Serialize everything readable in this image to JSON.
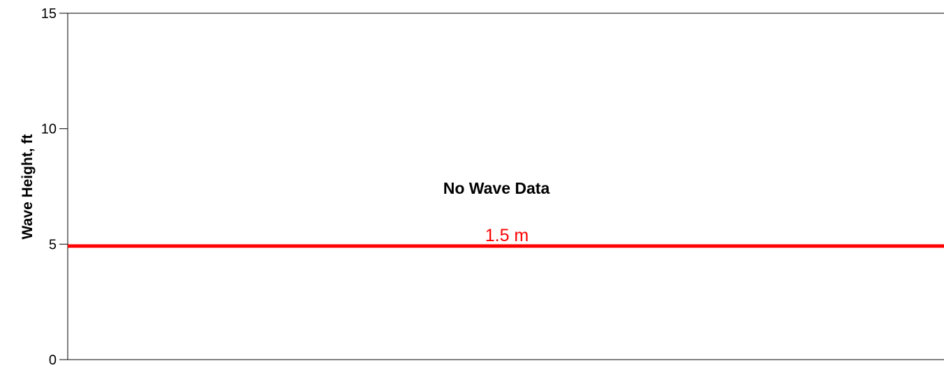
{
  "chart_data": {
    "type": "line",
    "title": "",
    "xlabel": "",
    "ylabel": "Wave Height, ft",
    "ylim": [
      0,
      15
    ],
    "yticks": [
      0,
      5,
      10,
      15
    ],
    "ytick_labels": [
      "0",
      "5",
      "10",
      "15"
    ],
    "grid": false,
    "series": [],
    "annotation": "No Wave Data",
    "reference_line": {
      "y": 4.92,
      "label": "1.5 m",
      "color": "#ff0000"
    }
  }
}
